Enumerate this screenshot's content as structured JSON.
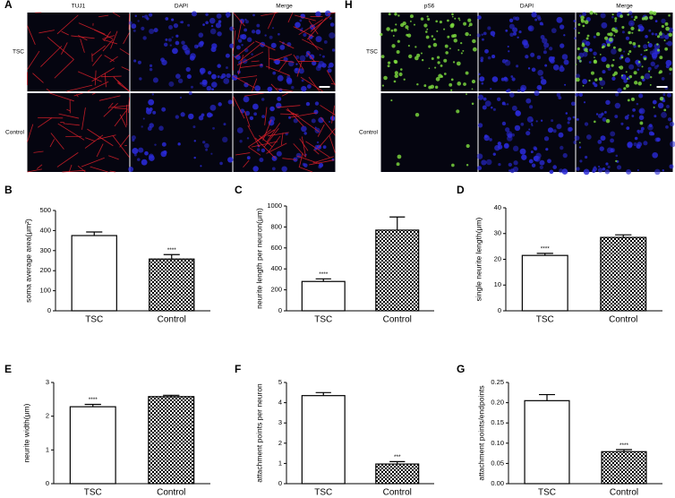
{
  "image_panels": [
    {
      "panel_label": "A",
      "columns": [
        "TUJ1",
        "DAPI",
        "Merge"
      ],
      "rows": [
        "TSC",
        "Control"
      ]
    },
    {
      "panel_label": "H",
      "columns": [
        "pS6",
        "DAPI",
        "Merge"
      ],
      "rows": [
        "TSC",
        "Control"
      ]
    }
  ],
  "chart_data": [
    {
      "type": "bar",
      "panel_label": "B",
      "y_label": "soma average area(μm²)",
      "categories": [
        "TSC",
        "Control"
      ],
      "values": [
        375,
        258
      ],
      "errors": [
        18,
        22
      ],
      "value_annotations": [
        null,
        "****"
      ],
      "fills": [
        "white",
        "checkered"
      ],
      "ylim": [
        0,
        500
      ],
      "yticks": [
        0,
        100,
        200,
        300,
        400,
        500
      ]
    },
    {
      "type": "bar",
      "panel_label": "C",
      "y_label": "neurite length per neuron(μm)",
      "categories": [
        "TSC",
        "Control"
      ],
      "values": [
        280,
        770
      ],
      "errors": [
        25,
        125
      ],
      "value_annotations": [
        "****",
        null
      ],
      "fills": [
        "white",
        "checkered"
      ],
      "ylim": [
        0,
        1000
      ],
      "yticks": [
        0,
        200,
        400,
        600,
        800,
        1000
      ]
    },
    {
      "type": "bar",
      "panel_label": "D",
      "y_label": "single neurite length(μm)",
      "categories": [
        "TSC",
        "Control"
      ],
      "values": [
        21.5,
        28.5
      ],
      "errors": [
        0.8,
        1
      ],
      "value_annotations": [
        "****",
        null
      ],
      "fills": [
        "white",
        "checkered"
      ],
      "ylim": [
        0,
        40
      ],
      "yticks": [
        0,
        10,
        20,
        30,
        40
      ]
    },
    {
      "type": "bar",
      "panel_label": "E",
      "y_label": "neurite width(μm)",
      "categories": [
        "TSC",
        "Control"
      ],
      "values": [
        2.28,
        2.58
      ],
      "errors": [
        0.07,
        0.04
      ],
      "value_annotations": [
        "****",
        null
      ],
      "fills": [
        "white",
        "checkered"
      ],
      "ylim": [
        0,
        3
      ],
      "yticks": [
        0,
        1,
        2,
        3
      ]
    },
    {
      "type": "bar",
      "panel_label": "F",
      "y_label": "attachment points per neuron",
      "categories": [
        "TSC",
        "Control"
      ],
      "values": [
        4.35,
        0.97
      ],
      "errors": [
        0.15,
        0.12
      ],
      "value_annotations": [
        null,
        "***"
      ],
      "fills": [
        "white",
        "checkered"
      ],
      "ylim": [
        0,
        5
      ],
      "yticks": [
        0,
        1,
        2,
        3,
        4,
        5
      ]
    },
    {
      "type": "bar",
      "panel_label": "G",
      "y_label": "attachment points/endpoints",
      "categories": [
        "TSC",
        "Control"
      ],
      "values": [
        0.205,
        0.079
      ],
      "errors": [
        0.015,
        0.005
      ],
      "value_annotations": [
        null,
        "****"
      ],
      "fills": [
        "white",
        "checkered"
      ],
      "ylim": [
        0,
        0.25
      ],
      "yticks": [
        {
          "value": 0,
          "label": "0.00"
        },
        0.05,
        {
          "value": 0.1,
          "label": "0.10"
        },
        0.15,
        {
          "value": 0.2,
          "label": "0.20"
        },
        0.25
      ]
    }
  ]
}
